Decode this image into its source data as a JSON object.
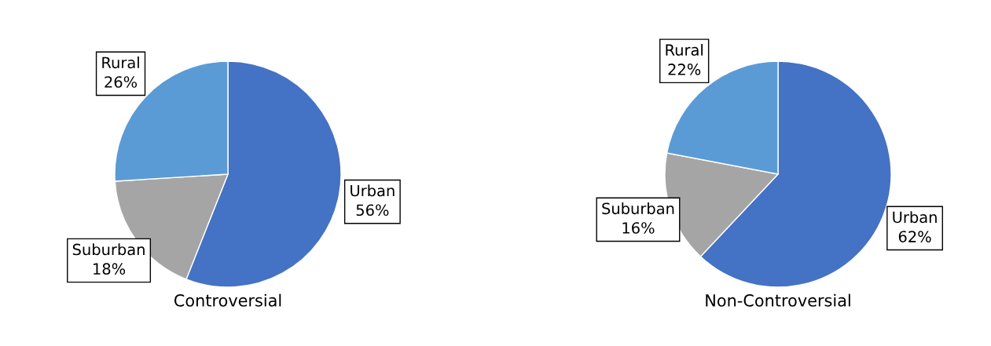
{
  "chart_data": [
    {
      "type": "pie",
      "title": "Controversial",
      "categories": [
        "Urban",
        "Suburban",
        "Rural"
      ],
      "values": [
        56,
        18,
        26
      ],
      "value_labels": [
        "56%",
        "18%",
        "26%"
      ],
      "colors": [
        "#4472c4",
        "#a5a5a5",
        "#5b9bd5"
      ]
    },
    {
      "type": "pie",
      "title": "Non-Controversial",
      "categories": [
        "Urban",
        "Suburban",
        "Rural"
      ],
      "values": [
        62,
        16,
        22
      ],
      "value_labels": [
        "62%",
        "16%",
        "22%"
      ],
      "colors": [
        "#4472c4",
        "#a5a5a5",
        "#5b9bd5"
      ]
    }
  ]
}
